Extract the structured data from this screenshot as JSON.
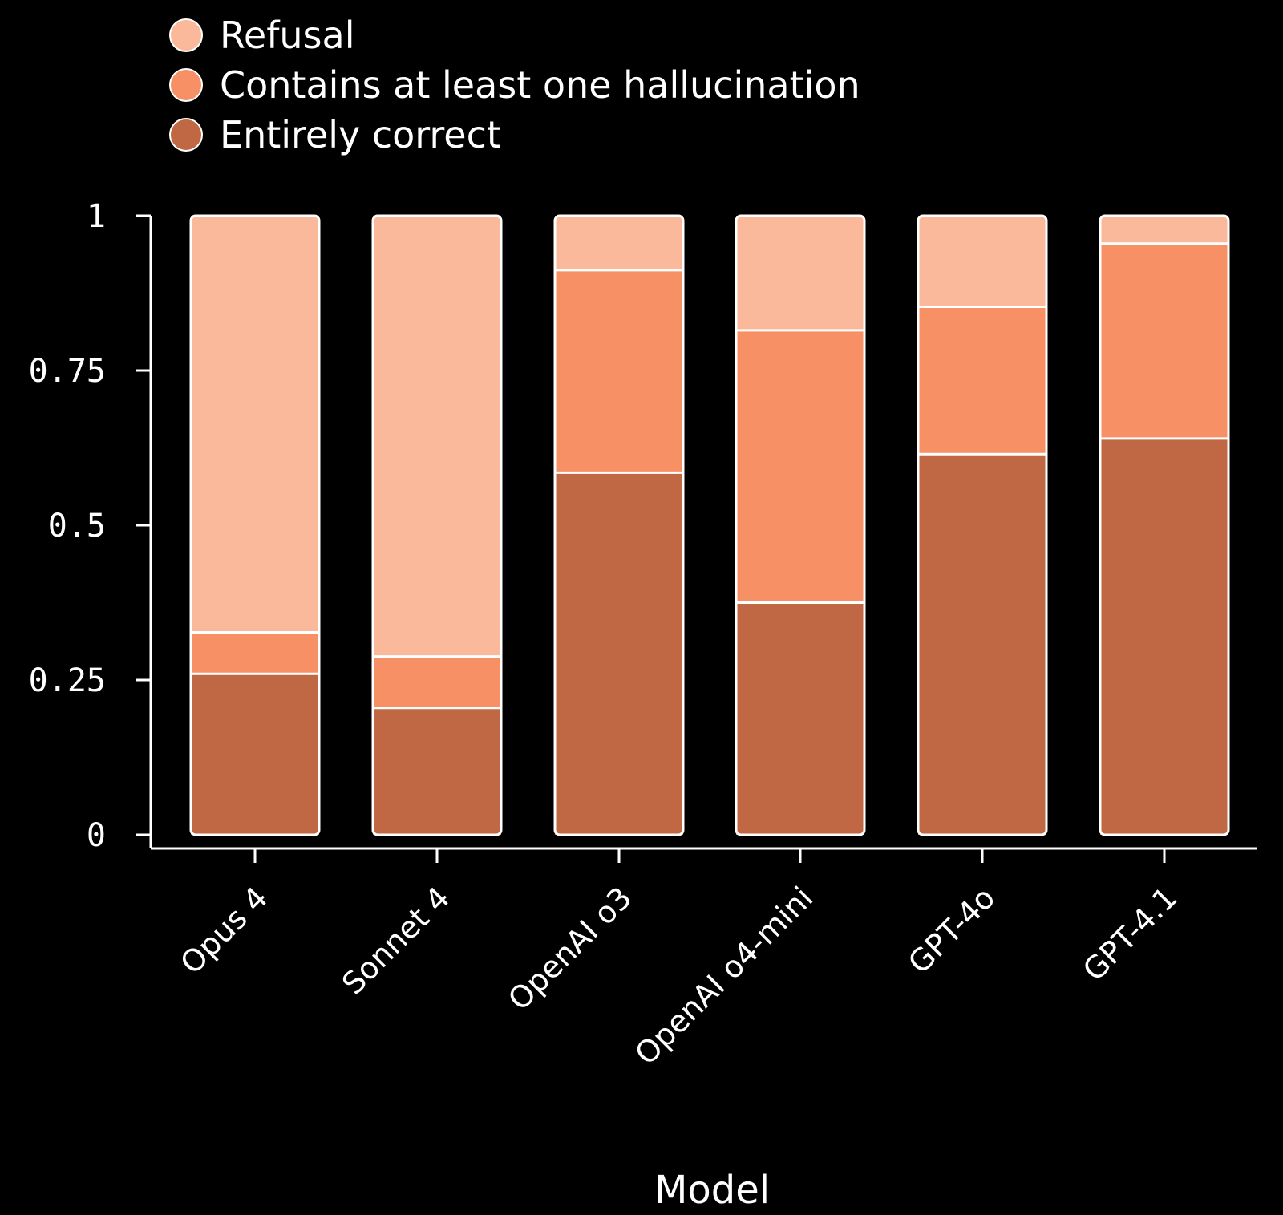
{
  "chart_data": {
    "type": "bar",
    "stacked": true,
    "xlabel": "Model",
    "ylabel": "",
    "ylim": [
      0,
      1
    ],
    "yticks": [
      0,
      0.25,
      0.5,
      0.75,
      1
    ],
    "ytick_labels": [
      "0",
      "0.25",
      "0.5",
      "0.75",
      "1"
    ],
    "categories": [
      "Opus 4",
      "Sonnet 4",
      "OpenAI o3",
      "OpenAI o4-mini",
      "GPT-4o",
      "GPT-4.1"
    ],
    "series": [
      {
        "name": "Entirely correct",
        "color": "#C06844",
        "values": [
          0.26,
          0.205,
          0.585,
          0.375,
          0.615,
          0.64
        ]
      },
      {
        "name": "Contains at least one hallucination",
        "color": "#F79065",
        "values": [
          0.067,
          0.083,
          0.327,
          0.44,
          0.238,
          0.315
        ]
      },
      {
        "name": "Refusal",
        "color": "#F9B99A",
        "values": [
          0.673,
          0.712,
          0.088,
          0.185,
          0.147,
          0.045
        ]
      }
    ],
    "legend": {
      "placement": "top-left",
      "order": [
        "Refusal",
        "Contains at least one hallucination",
        "Entirely correct"
      ]
    },
    "grid": false
  }
}
